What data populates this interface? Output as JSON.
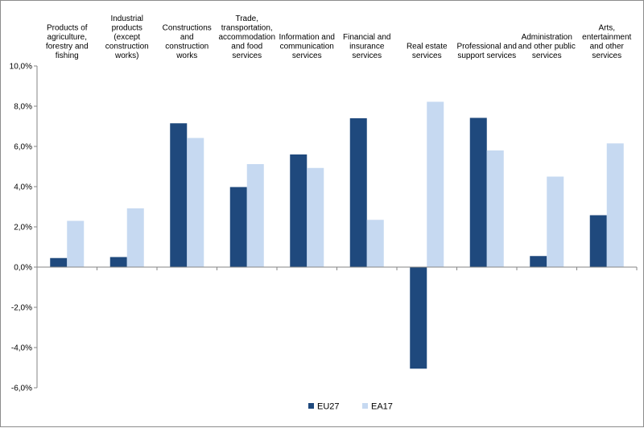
{
  "chart_data": {
    "type": "bar",
    "categories": [
      [
        "Products of",
        "agriculture,",
        "forestry and",
        "fishing"
      ],
      [
        "Industrial",
        "products",
        "(except",
        "construction",
        "works)"
      ],
      [
        "Constructions",
        "and",
        "construction",
        "works"
      ],
      [
        "Trade,",
        "transportation,",
        "accommodation",
        "and food",
        "services"
      ],
      [
        "Information and",
        "communication",
        "services"
      ],
      [
        "Financial and",
        "insurance",
        "services"
      ],
      [
        "Real estate",
        "services"
      ],
      [
        "Professional and",
        "support services"
      ],
      [
        "Administration",
        "and other public",
        "services"
      ],
      [
        "Arts,",
        "entertainment",
        "and other",
        "services"
      ]
    ],
    "series": [
      {
        "name": "EU27",
        "color": "#1f497d",
        "values": [
          0.45,
          0.5,
          7.15,
          3.98,
          5.6,
          7.4,
          -5.05,
          7.42,
          0.55,
          2.58
        ]
      },
      {
        "name": "EA17",
        "color": "#c6d9f1",
        "values": [
          2.3,
          2.92,
          6.42,
          5.12,
          4.93,
          2.35,
          8.22,
          5.8,
          4.5,
          6.15
        ]
      }
    ],
    "yticks": [
      "10,0%",
      "8,0%",
      "6,0%",
      "4,0%",
      "2,0%",
      "0,0%",
      "-2,0%",
      "-4,0%",
      "-6,0%"
    ],
    "ylim": [
      -6,
      10
    ],
    "legend_position": "bottom",
    "grid": false
  }
}
